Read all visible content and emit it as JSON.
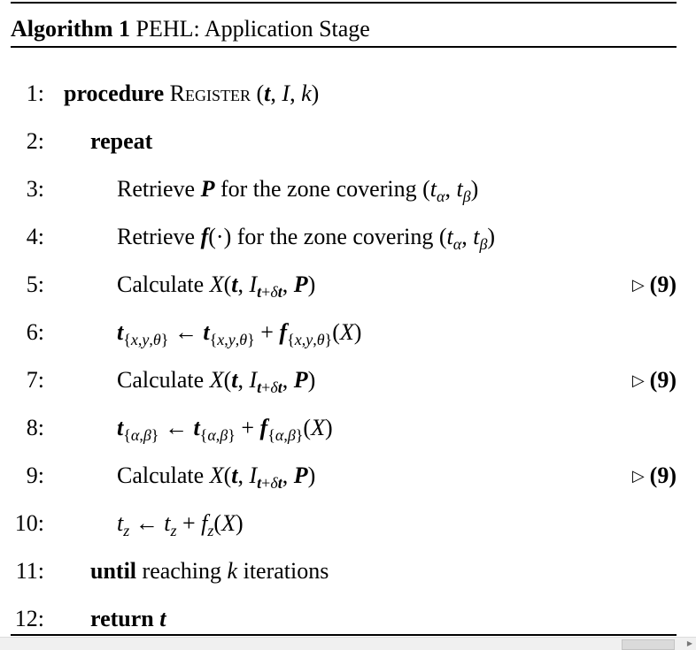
{
  "caption": {
    "label": "Algorithm 1",
    "title": "PEHL: Application Stage"
  },
  "comment_marker": "▷",
  "lines": [
    {
      "number": "1:",
      "keyword": "procedure",
      "name": "Register",
      "args": "(t, I, k)"
    },
    {
      "number": "2:",
      "keyword": "repeat"
    },
    {
      "number": "3:",
      "text": "Retrieve P for the zone covering (tα, tβ)"
    },
    {
      "number": "4:",
      "text": "Retrieve f(·) for the zone covering (tα, tβ)"
    },
    {
      "number": "5:",
      "text": "Calculate X(t, It+δt, P)",
      "comment": "(9)"
    },
    {
      "number": "6:",
      "text": "t{x,y,θ} ← t{x,y,θ} + f{x,y,θ}(X)"
    },
    {
      "number": "7:",
      "text": "Calculate X(t, It+δt, P)",
      "comment": "(9)"
    },
    {
      "number": "8:",
      "text": "t{α,β} ← t{α,β} + f{α,β}(X)"
    },
    {
      "number": "9:",
      "text": "Calculate X(t, It+δt, P)",
      "comment": "(9)"
    },
    {
      "number": "10:",
      "text": "tz ← tz + fz(X)"
    },
    {
      "number": "11:",
      "keyword": "until",
      "text": "reaching k iterations"
    },
    {
      "number": "12:",
      "keyword": "return",
      "text": "t"
    }
  ]
}
